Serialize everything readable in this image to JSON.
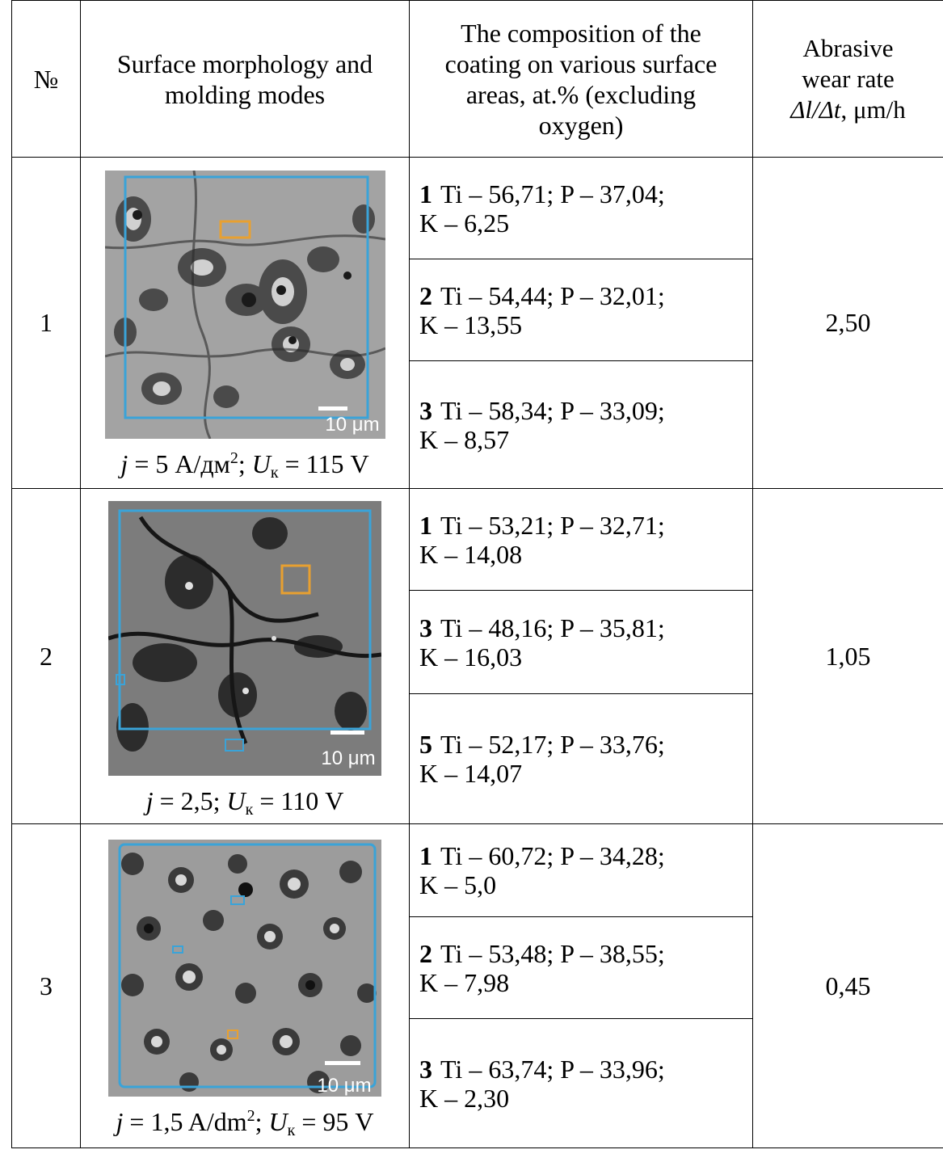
{
  "headers": {
    "number": "№",
    "morphology_line1": "Surface morphology and",
    "morphology_line2": "molding modes",
    "composition_line1": "The composition of the",
    "composition_line2": "coating on various surface",
    "composition_line3": "areas, at.% (excluding",
    "composition_line4": "oxygen)",
    "rate_line1": "Abrasive",
    "rate_line2": "wear rate",
    "rate_line3_delta_l": "Δl/Δt",
    "rate_line3_unit": ", μm/h"
  },
  "rows": [
    {
      "number": "1",
      "scale_bar": "10 μm",
      "mode": {
        "j": "j",
        "j_value": " = 5 А/дм",
        "j_exp": "2",
        "sep": "; ",
        "u": "U",
        "u_sub": "к",
        "u_value": " = 115 V"
      },
      "compositions": [
        {
          "index": "1",
          "line1": "Ti – 56,71; P – 37,04;",
          "line2": "K – 6,25"
        },
        {
          "index": "2",
          "line1": "Ti – 54,44; P – 32,01;",
          "line2": "K – 13,55"
        },
        {
          "index": "3",
          "line1": "Ti – 58,34; P – 33,09;",
          "line2": "K – 8,57"
        }
      ],
      "rate": "2,50"
    },
    {
      "number": "2",
      "scale_bar": "10 μm",
      "mode": {
        "j": "j",
        "j_value": " = 2,5",
        "j_exp": "",
        "sep": "; ",
        "u": "U",
        "u_sub": "к",
        "u_value": " = 110 V"
      },
      "compositions": [
        {
          "index": "1",
          "line1": "Ti – 53,21; P – 32,71;",
          "line2": "K – 14,08"
        },
        {
          "index": "3",
          "line1": "Ti – 48,16; P – 35,81;",
          "line2": "K – 16,03"
        },
        {
          "index": "5",
          "line1": "Ti – 52,17; P – 33,76;",
          "line2": "K – 14,07"
        }
      ],
      "rate": "1,05"
    },
    {
      "number": "3",
      "scale_bar": "10 μm",
      "mode": {
        "j": "j",
        "j_value": " = 1,5 A/dm",
        "j_exp": "2",
        "sep": "; ",
        "u": "U",
        "u_sub": "к",
        "u_value": " = 95 V"
      },
      "compositions": [
        {
          "index": "1",
          "line1": "Ti – 60,72; P – 34,28;",
          "line2": "K – 5,0"
        },
        {
          "index": "2",
          "line1": "Ti – 53,48; P – 38,55;",
          "line2": "K – 7,98"
        },
        {
          "index": "3",
          "line1": "Ti – 63,74; P – 33,96;",
          "line2": "K – 2,30"
        }
      ],
      "rate": "0,45"
    }
  ],
  "colors": {
    "frame_blue": "#3aa3d8",
    "marker_orange": "#e8a030",
    "micro_gray": "#9a9a9a"
  }
}
